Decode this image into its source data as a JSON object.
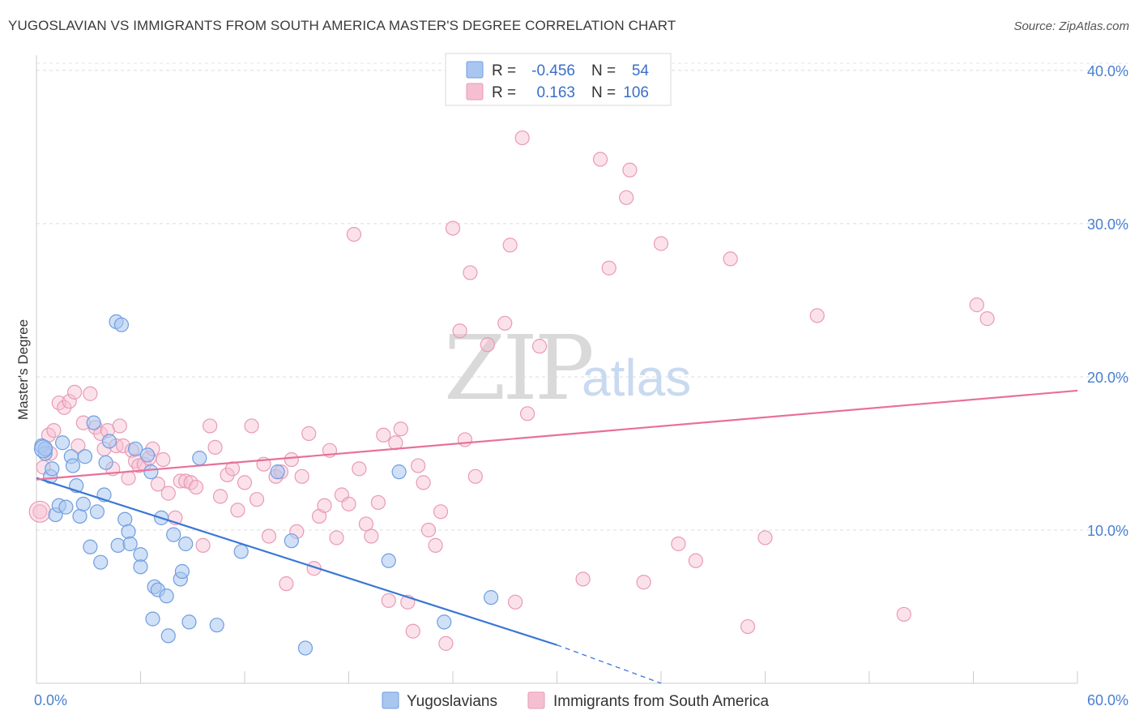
{
  "title": "YUGOSLAVIAN VS IMMIGRANTS FROM SOUTH AMERICA MASTER'S DEGREE CORRELATION CHART",
  "source": "Source: ZipAtlas.com",
  "watermark": {
    "part1": "ZIP",
    "part2": "atlas"
  },
  "colors": {
    "blue": "#3a77d4",
    "pink": "#e8709a",
    "blue_fill": "#a9c6f0",
    "pink_fill": "#f6bfd1"
  },
  "chart_data": {
    "type": "scatter",
    "title": "YUGOSLAVIAN VS IMMIGRANTS FROM SOUTH AMERICA MASTER'S DEGREE CORRELATION CHART",
    "xlabel": "",
    "ylabel": "Master's Degree",
    "xlim": [
      0,
      60
    ],
    "ylim": [
      0,
      41
    ],
    "x_tick_labels": [
      "0.0%",
      "60.0%"
    ],
    "y_ticks": [
      10,
      20,
      30,
      40
    ],
    "y_tick_labels": [
      "10.0%",
      "20.0%",
      "30.0%",
      "40.0%"
    ],
    "grid": true,
    "legend_placement": "top-center",
    "legend": [
      {
        "r_label": "R =",
        "r_value": "-0.456",
        "n_label": "N =",
        "n_value": "54"
      },
      {
        "r_label": "R =",
        "r_value": "0.163",
        "n_label": "N =",
        "n_value": "106"
      }
    ],
    "series": [
      {
        "name": "Yugoslavians",
        "color": "#3a77d4",
        "trend": {
          "x": [
            0,
            30
          ],
          "y": [
            13.4,
            2.5
          ],
          "dashed_to": [
            36.0,
            0.0
          ]
        },
        "points": [
          [
            0.3,
            15.5
          ],
          [
            0.5,
            15.0
          ],
          [
            0.5,
            15.3
          ],
          [
            0.8,
            13.5
          ],
          [
            0.9,
            14.0
          ],
          [
            1.1,
            11.0
          ],
          [
            1.3,
            11.6
          ],
          [
            1.5,
            15.7
          ],
          [
            1.7,
            11.5
          ],
          [
            2.0,
            14.8
          ],
          [
            2.1,
            14.2
          ],
          [
            2.3,
            12.9
          ],
          [
            2.5,
            10.9
          ],
          [
            2.7,
            11.7
          ],
          [
            2.8,
            14.8
          ],
          [
            3.1,
            8.9
          ],
          [
            3.3,
            17.0
          ],
          [
            3.5,
            11.2
          ],
          [
            3.7,
            7.9
          ],
          [
            3.9,
            12.3
          ],
          [
            4.0,
            14.4
          ],
          [
            4.2,
            15.8
          ],
          [
            4.6,
            23.6
          ],
          [
            4.7,
            9.0
          ],
          [
            4.9,
            23.4
          ],
          [
            5.1,
            10.7
          ],
          [
            5.3,
            9.9
          ],
          [
            5.4,
            9.1
          ],
          [
            5.7,
            15.3
          ],
          [
            6.0,
            8.4
          ],
          [
            6.0,
            7.6
          ],
          [
            6.4,
            14.9
          ],
          [
            6.6,
            13.8
          ],
          [
            6.7,
            4.2
          ],
          [
            6.8,
            6.3
          ],
          [
            7.0,
            6.1
          ],
          [
            7.2,
            10.8
          ],
          [
            7.5,
            5.7
          ],
          [
            7.6,
            3.1
          ],
          [
            7.9,
            9.7
          ],
          [
            8.3,
            6.8
          ],
          [
            8.4,
            7.3
          ],
          [
            8.6,
            9.1
          ],
          [
            8.8,
            4.0
          ],
          [
            9.4,
            14.7
          ],
          [
            10.4,
            3.8
          ],
          [
            11.8,
            8.6
          ],
          [
            13.9,
            13.8
          ],
          [
            14.7,
            9.3
          ],
          [
            15.5,
            2.3
          ],
          [
            20.3,
            8.0
          ],
          [
            20.9,
            13.8
          ],
          [
            26.2,
            5.6
          ],
          [
            23.5,
            4.0
          ]
        ]
      },
      {
        "name": "Immigrants from South America",
        "color": "#e8709a",
        "trend": {
          "x": [
            0,
            60
          ],
          "y": [
            13.3,
            19.1
          ]
        },
        "points": [
          [
            0.2,
            11.2
          ],
          [
            0.4,
            14.1
          ],
          [
            0.7,
            16.2
          ],
          [
            0.8,
            15.0
          ],
          [
            1.0,
            16.5
          ],
          [
            1.3,
            18.3
          ],
          [
            1.6,
            18.0
          ],
          [
            1.9,
            18.4
          ],
          [
            2.2,
            19.0
          ],
          [
            2.4,
            15.5
          ],
          [
            2.7,
            17.0
          ],
          [
            3.1,
            18.9
          ],
          [
            3.4,
            16.7
          ],
          [
            3.7,
            16.3
          ],
          [
            3.9,
            15.3
          ],
          [
            4.1,
            16.5
          ],
          [
            4.4,
            14.0
          ],
          [
            4.6,
            15.5
          ],
          [
            4.8,
            16.8
          ],
          [
            5.0,
            15.5
          ],
          [
            5.3,
            13.4
          ],
          [
            5.5,
            15.2
          ],
          [
            5.7,
            14.5
          ],
          [
            5.9,
            14.2
          ],
          [
            6.2,
            14.3
          ],
          [
            6.5,
            14.7
          ],
          [
            6.7,
            15.3
          ],
          [
            7.0,
            13.0
          ],
          [
            7.3,
            14.6
          ],
          [
            7.6,
            12.4
          ],
          [
            8.0,
            10.8
          ],
          [
            8.3,
            13.2
          ],
          [
            8.6,
            13.2
          ],
          [
            8.9,
            13.1
          ],
          [
            9.2,
            12.8
          ],
          [
            9.6,
            9.0
          ],
          [
            10.0,
            16.8
          ],
          [
            10.3,
            15.4
          ],
          [
            10.6,
            12.2
          ],
          [
            11.0,
            13.6
          ],
          [
            11.3,
            14.0
          ],
          [
            11.6,
            11.3
          ],
          [
            12.0,
            13.1
          ],
          [
            12.4,
            16.8
          ],
          [
            12.7,
            12.0
          ],
          [
            13.1,
            14.3
          ],
          [
            13.4,
            9.6
          ],
          [
            13.8,
            13.5
          ],
          [
            14.1,
            13.8
          ],
          [
            14.4,
            6.5
          ],
          [
            14.7,
            14.6
          ],
          [
            15.0,
            9.9
          ],
          [
            15.3,
            13.5
          ],
          [
            15.7,
            16.3
          ],
          [
            16.0,
            7.5
          ],
          [
            16.3,
            10.9
          ],
          [
            16.6,
            11.6
          ],
          [
            16.9,
            15.2
          ],
          [
            17.3,
            9.5
          ],
          [
            17.6,
            12.3
          ],
          [
            18.0,
            11.7
          ],
          [
            18.3,
            29.3
          ],
          [
            18.6,
            14.0
          ],
          [
            19.0,
            10.4
          ],
          [
            19.3,
            9.6
          ],
          [
            19.7,
            11.8
          ],
          [
            20.0,
            16.2
          ],
          [
            20.3,
            5.4
          ],
          [
            20.7,
            15.7
          ],
          [
            21.0,
            16.6
          ],
          [
            21.4,
            5.3
          ],
          [
            21.7,
            3.4
          ],
          [
            22.0,
            14.2
          ],
          [
            22.3,
            13.1
          ],
          [
            22.6,
            10.0
          ],
          [
            23.0,
            9.0
          ],
          [
            23.3,
            11.2
          ],
          [
            23.6,
            2.6
          ],
          [
            24.0,
            29.7
          ],
          [
            24.4,
            23.0
          ],
          [
            24.7,
            15.9
          ],
          [
            25.0,
            26.8
          ],
          [
            25.3,
            13.5
          ],
          [
            26.0,
            22.1
          ],
          [
            27.0,
            23.5
          ],
          [
            27.3,
            28.6
          ],
          [
            27.6,
            5.3
          ],
          [
            28.0,
            35.6
          ],
          [
            28.3,
            17.6
          ],
          [
            29.0,
            22.0
          ],
          [
            31.5,
            6.8
          ],
          [
            32.5,
            34.2
          ],
          [
            33.0,
            27.1
          ],
          [
            34.0,
            31.7
          ],
          [
            34.2,
            33.5
          ],
          [
            35.0,
            6.6
          ],
          [
            36.0,
            28.7
          ],
          [
            37.0,
            9.1
          ],
          [
            38.0,
            8.0
          ],
          [
            40.0,
            27.7
          ],
          [
            41.0,
            3.7
          ],
          [
            42.0,
            9.5
          ],
          [
            45.0,
            24.0
          ],
          [
            50.0,
            4.5
          ],
          [
            54.2,
            24.7
          ],
          [
            54.8,
            23.8
          ]
        ]
      }
    ]
  }
}
